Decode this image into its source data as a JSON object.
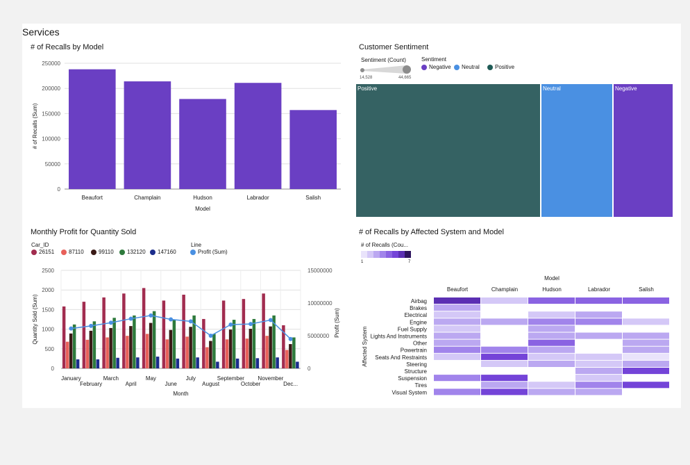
{
  "page": {
    "title": "Services"
  },
  "recalls_by_model": {
    "title": "# of Recalls by Model",
    "chart_data": {
      "type": "bar",
      "title": "# of Recalls by Model",
      "categories": [
        "Beaufort",
        "Champlain",
        "Hudson",
        "Labrador",
        "Salish"
      ],
      "values": [
        238000,
        214000,
        179000,
        211000,
        157000
      ],
      "xlabel": "Model",
      "ylabel": "# of Recalls (Sum)",
      "ylim": [
        0,
        250000
      ],
      "yticks": [
        "250000",
        "200000",
        "150000",
        "100000",
        "50000",
        "0"
      ],
      "color": "#6a3fc3",
      "grid": true
    }
  },
  "sentiment": {
    "title": "Customer Sentiment",
    "size_legend": {
      "label": "Sentiment (Count)",
      "min": "14,528",
      "max": "44,665"
    },
    "color_legend": {
      "label": "Sentiment",
      "items": [
        {
          "name": "Negative",
          "color": "#6a3fc3"
        },
        {
          "name": "Neutral",
          "color": "#4a90e2"
        },
        {
          "name": "Positive",
          "color": "#1f5b56"
        }
      ]
    },
    "chart_data": {
      "type": "treemap",
      "title": "Customer Sentiment",
      "items": [
        {
          "name": "Positive",
          "value": 44665,
          "color": "#356263"
        },
        {
          "name": "Neutral",
          "value": 17300,
          "color": "#4a90e2"
        },
        {
          "name": "Negative",
          "value": 14528,
          "color": "#6a3fc3"
        }
      ]
    }
  },
  "monthly_profit": {
    "title": "Monthly Profit for Quantity Sold",
    "legend_car_label": "Car_ID",
    "legend_line_label": "Line",
    "legend_line_item": "Profit (Sum)",
    "chart_data": {
      "type": "bar",
      "title": "Monthly Profit for Quantity Sold",
      "categories": [
        "January",
        "February",
        "March",
        "April",
        "May",
        "June",
        "July",
        "August",
        "September",
        "October",
        "November",
        "Dec..."
      ],
      "series": [
        {
          "name": "26151",
          "color": "#a12c4f",
          "values": [
            1580,
            1700,
            1810,
            1910,
            2050,
            1730,
            1880,
            1260,
            1730,
            1770,
            1910,
            1100
          ]
        },
        {
          "name": "87110",
          "color": "#e8605a",
          "values": [
            680,
            730,
            790,
            830,
            880,
            740,
            810,
            540,
            740,
            760,
            830,
            470
          ]
        },
        {
          "name": "99110",
          "color": "#3a1a16",
          "values": [
            890,
            960,
            1030,
            1080,
            1160,
            980,
            1060,
            700,
            990,
            1010,
            1070,
            620
          ]
        },
        {
          "name": "132120",
          "color": "#2e7a3c",
          "values": [
            1120,
            1200,
            1290,
            1350,
            1460,
            1240,
            1350,
            880,
            1240,
            1260,
            1350,
            790
          ]
        },
        {
          "name": "147160",
          "color": "#1c2d8c",
          "values": [
            230,
            230,
            270,
            280,
            300,
            250,
            280,
            170,
            250,
            260,
            280,
            170
          ]
        }
      ],
      "line": {
        "name": "Profit (Sum)",
        "color": "#4a90e2",
        "values": [
          6100000,
          6500000,
          7000000,
          7600000,
          8100000,
          7500000,
          7200000,
          5000000,
          6700000,
          6800000,
          7400000,
          4500000
        ]
      },
      "xlabel": "Month",
      "ylabel": "Quantity Sold (Sum)",
      "ylabel_right": "Profit (Sum)",
      "ylim": [
        0,
        2500
      ],
      "ylim_right": [
        0,
        15000000
      ],
      "yticks": [
        "2500",
        "2000",
        "1500",
        "1000",
        "500",
        "0"
      ],
      "yticks_right": [
        "15000000",
        "10000000",
        "5000000",
        "0"
      ]
    }
  },
  "heatmap": {
    "title": "# of Recalls by Affected System and Model",
    "legend_label": "# of Recalls (Cou...",
    "legend_min": "1",
    "legend_max": "7",
    "legend_colors": [
      "#e9e3fb",
      "#d4c8f7",
      "#bba8f1",
      "#a184eb",
      "#8a63e2",
      "#7444d8",
      "#5b2fb3",
      "#2e145e"
    ],
    "chart_data": {
      "type": "heatmap",
      "title": "# of Recalls by Affected System and Model",
      "xlabel": "Model",
      "ylabel": "Affected System",
      "columns": [
        "Beaufort",
        "Champlain",
        "Hudson",
        "Labrador",
        "Salish"
      ],
      "rows": [
        "Airbag",
        "Brakes",
        "Electrical",
        "Engine",
        "Fuel Supply",
        "Lights And Instruments",
        "Other",
        "Powertrain",
        "Seats And Restraints",
        "Steering",
        "Structure",
        "Suspension",
        "Tires",
        "Visual System"
      ],
      "values": [
        [
          7,
          2,
          5,
          5,
          5
        ],
        [
          3,
          0,
          0,
          0,
          0
        ],
        [
          2,
          0,
          2,
          3,
          0
        ],
        [
          3,
          3,
          4,
          4,
          2
        ],
        [
          2,
          0,
          3,
          0,
          0
        ],
        [
          3,
          0,
          3,
          3,
          3
        ],
        [
          3,
          0,
          5,
          0,
          3
        ],
        [
          4,
          4,
          3,
          0,
          3
        ],
        [
          2,
          6,
          2,
          2,
          1
        ],
        [
          0,
          2,
          3,
          2,
          3
        ],
        [
          0,
          0,
          0,
          3,
          6
        ],
        [
          4,
          6,
          0,
          2,
          0
        ],
        [
          0,
          3,
          2,
          4,
          6
        ],
        [
          4,
          6,
          3,
          3,
          0
        ]
      ]
    }
  }
}
